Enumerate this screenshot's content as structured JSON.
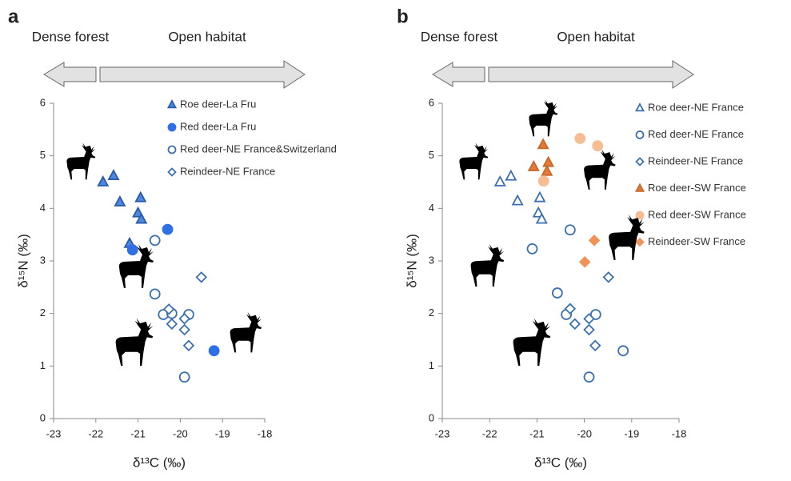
{
  "chart_data": [
    {
      "type": "scatter",
      "label": "a",
      "annotations": [
        "Dense forest",
        "Open habitat"
      ],
      "xlabel": "δ¹³C (‰)",
      "ylabel": "δ¹⁵N (‰)",
      "xlim": [
        -23,
        -18
      ],
      "ylim": [
        0,
        6
      ],
      "xticks": [
        -23,
        -22,
        -21,
        -20,
        -19,
        -18
      ],
      "yticks": [
        0,
        1,
        2,
        3,
        4,
        5,
        6
      ],
      "legend": "upper right",
      "series": [
        {
          "name": "Roe deer-La Fru",
          "marker": "triangle",
          "filled": true,
          "color": "#4f86e0",
          "edge": "#2a5aa8",
          "x": [
            -21.83,
            -21.58,
            -21.43,
            -20.94,
            -21.0,
            -20.92,
            -21.2
          ],
          "values": [
            4.5,
            4.62,
            4.12,
            4.2,
            3.91,
            3.79,
            3.33
          ]
        },
        {
          "name": "Red deer-La Fru",
          "marker": "circle",
          "filled": true,
          "color": "#2f6fe6",
          "edge": "#2f6fe6",
          "x": [
            -20.3,
            -21.13,
            -19.2
          ],
          "values": [
            3.6,
            3.21,
            1.29
          ]
        },
        {
          "name": "Red deer-NE France&Switzerland",
          "marker": "circle",
          "filled": false,
          "color": "#ffffff",
          "edge": "#3b6fb0",
          "x": [
            -20.6,
            -20.6,
            -20.4,
            -20.2,
            -19.8,
            -19.9
          ],
          "values": [
            3.39,
            2.37,
            1.98,
            2.0,
            1.98,
            0.79
          ]
        },
        {
          "name": "Reindeer-NE France",
          "marker": "diamond",
          "filled": false,
          "color": "#ffffff",
          "edge": "#3b6fb0",
          "x": [
            -19.5,
            -20.27,
            -20.2,
            -19.9,
            -19.9,
            -19.8
          ],
          "values": [
            2.69,
            2.08,
            1.8,
            1.9,
            1.69,
            1.39
          ]
        }
      ]
    },
    {
      "type": "scatter",
      "label": "b",
      "annotations": [
        "Dense forest",
        "Open habitat"
      ],
      "xlabel": "δ¹³C (‰)",
      "ylabel": "δ¹⁵N (‰)",
      "xlim": [
        -23,
        -18
      ],
      "ylim": [
        0,
        6
      ],
      "xticks": [
        -23,
        -22,
        -21,
        -20,
        -19,
        -18
      ],
      "yticks": [
        0,
        1,
        2,
        3,
        4,
        5,
        6
      ],
      "legend": "upper right",
      "series": [
        {
          "name": "Roe deer-NE France",
          "marker": "triangle",
          "filled": false,
          "color": "#ffffff",
          "edge": "#3b6fb0",
          "x": [
            -21.78,
            -21.55,
            -21.41,
            -20.94,
            -20.97,
            -20.9
          ],
          "values": [
            4.5,
            4.61,
            4.14,
            4.2,
            3.91,
            3.79
          ]
        },
        {
          "name": "Red deer-NE France",
          "marker": "circle",
          "filled": false,
          "color": "#ffffff",
          "edge": "#3b6fb0",
          "x": [
            -20.3,
            -21.1,
            -20.57,
            -20.38,
            -19.76,
            -19.9,
            -19.18
          ],
          "values": [
            3.59,
            3.23,
            2.39,
            1.98,
            1.98,
            0.79,
            1.29
          ]
        },
        {
          "name": "Reindeer-NE France",
          "marker": "diamond",
          "filled": false,
          "color": "#ffffff",
          "edge": "#3b6fb0",
          "x": [
            -19.49,
            -20.3,
            -20.2,
            -19.9,
            -19.9,
            -19.77
          ],
          "values": [
            2.69,
            2.09,
            1.8,
            1.9,
            1.69,
            1.39
          ]
        },
        {
          "name": "Roe deer-SW France",
          "marker": "triangle",
          "filled": true,
          "color": "#e07b39",
          "edge": "#c8682a",
          "x": [
            -20.87,
            -21.07,
            -20.76,
            -20.79
          ],
          "values": [
            5.21,
            4.79,
            4.87,
            4.7
          ]
        },
        {
          "name": "Red deer-SW France",
          "marker": "circle",
          "filled": true,
          "color": "#f6bd93",
          "edge": "#f6bd93",
          "x": [
            -20.09,
            -19.72,
            -20.86
          ],
          "values": [
            5.33,
            5.19,
            4.52
          ]
        },
        {
          "name": "Reindeer-SW France",
          "marker": "diamond",
          "filled": true,
          "color": "#ef9357",
          "edge": "#ef9357",
          "x": [
            -19.79,
            -19.99
          ],
          "values": [
            3.39,
            2.98
          ]
        }
      ]
    }
  ]
}
